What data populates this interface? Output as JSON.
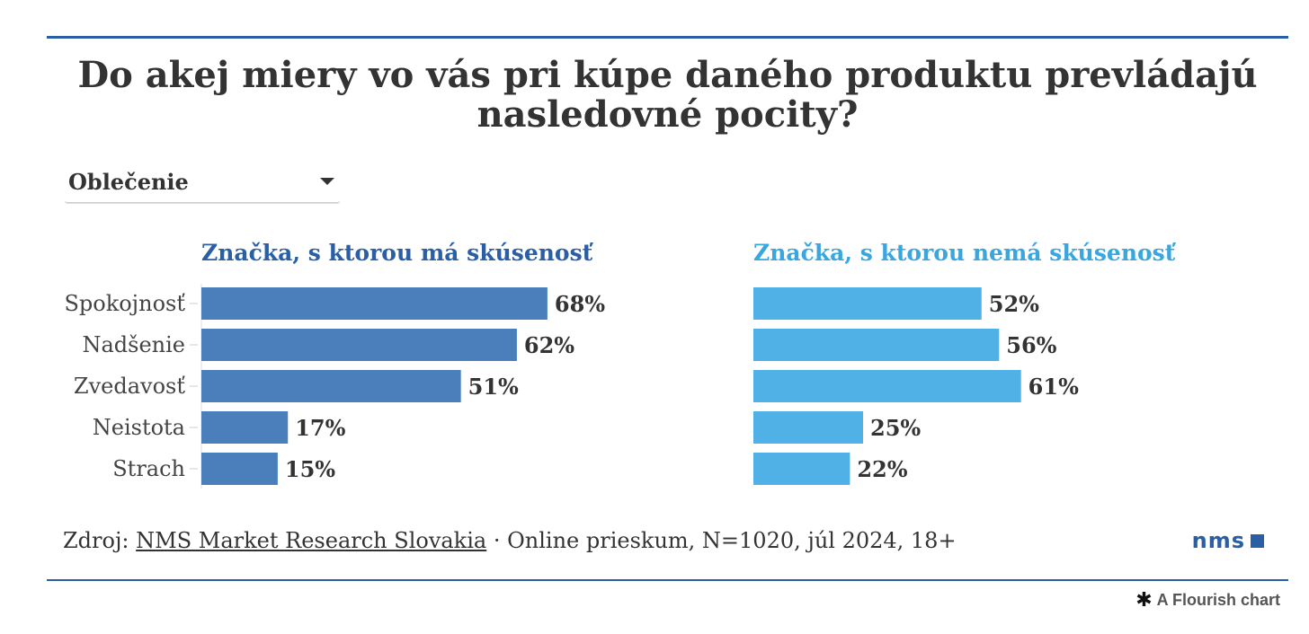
{
  "title_line1": "Do akej miery vo vás pri kúpe daného produktu prevládajú",
  "title_line2": "nasledovné pocity?",
  "dropdown": {
    "selected": "Oblečenie"
  },
  "source": {
    "prefix": "Zdroj: ",
    "link": "NMS Market Research Slovakia",
    "suffix": " · Online prieskum, N=1020, júl 2024, 18+"
  },
  "logo": {
    "text": "nms"
  },
  "flourish": {
    "text": "A Flourish chart"
  },
  "chart_data": {
    "type": "bar",
    "orientation": "horizontal",
    "categories": [
      "Spokojnosť",
      "Nadšenie",
      "Zvedavosť",
      "Neistota",
      "Strach"
    ],
    "series": [
      {
        "name": "Značka, s ktorou má skúsenosť",
        "values": [
          68,
          62,
          51,
          17,
          15
        ],
        "labels": [
          "68%",
          "62%",
          "51%",
          "17%",
          "15%"
        ],
        "color": "#4a7fbb"
      },
      {
        "name": "Značka, s ktorou nemá skúsenosť",
        "values": [
          52,
          56,
          61,
          25,
          22
        ],
        "labels": [
          "52%",
          "56%",
          "61%",
          "25%",
          "22%"
        ],
        "color": "#4fb1e6"
      }
    ],
    "unit": "%",
    "xlim": [
      0,
      100
    ]
  }
}
